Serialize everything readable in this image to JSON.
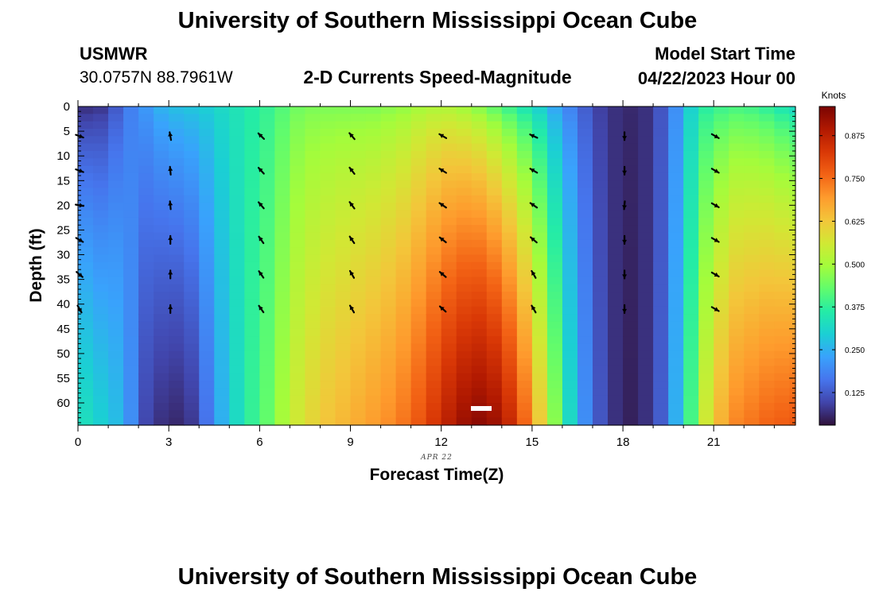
{
  "header": {
    "title": "University of Southern Mississippi Ocean Cube",
    "station_name": "USMWR",
    "station_coords": "30.0757N  88.7961W",
    "subtitle": "2-D Currents Speed-Magnitude",
    "model_label": "Model Start Time",
    "model_time": "04/22/2023 Hour 00"
  },
  "footer": {
    "title": "University of Southern Mississippi Ocean Cube"
  },
  "chart_data": {
    "type": "heatmap",
    "title": "2-D Currents Speed-Magnitude",
    "xlabel": "Forecast Time(Z)",
    "ylabel": "Depth (ft)",
    "date_label": "APR 22",
    "xlim": [
      0,
      23.7
    ],
    "ylim": [
      0,
      64.5
    ],
    "y_inverted": true,
    "x_ticks": [
      0,
      3,
      6,
      9,
      12,
      15,
      18,
      21
    ],
    "y_ticks": [
      0,
      5,
      10,
      15,
      20,
      25,
      30,
      35,
      40,
      45,
      50,
      55,
      60
    ],
    "colorbar": {
      "label": "Knots",
      "min": 0.03,
      "max": 0.96,
      "ticks": [
        "0.125",
        "0.250",
        "0.375",
        "0.500",
        "0.625",
        "0.750",
        "0.875"
      ],
      "tick_values": [
        0.125,
        0.25,
        0.375,
        0.5,
        0.625,
        0.75,
        0.875
      ],
      "colors": [
        "#30123b",
        "#4145ab",
        "#4675ed",
        "#39a2fc",
        "#1bcfd4",
        "#24eca6",
        "#61fc6c",
        "#a4fc3b",
        "#d1e834",
        "#f3c63a",
        "#fe9b2d",
        "#f36315",
        "#d93806",
        "#b11901",
        "#7a0403"
      ]
    },
    "time_hours": [
      0,
      0.5,
      1,
      1.5,
      2,
      2.5,
      3,
      3.5,
      4,
      4.5,
      5,
      5.5,
      6,
      6.5,
      7,
      7.5,
      8,
      8.5,
      9,
      9.5,
      10,
      10.5,
      11,
      11.5,
      12,
      12.5,
      13,
      13.5,
      14,
      14.5,
      15,
      15.5,
      16,
      16.5,
      17,
      17.5,
      18,
      18.5,
      19,
      19.5,
      20,
      20.5,
      21,
      21.5,
      22,
      22.5,
      23,
      23.5
    ],
    "surface_speed_knots": [
      0.06,
      0.07,
      0.12,
      0.18,
      0.22,
      0.26,
      0.28,
      0.29,
      0.3,
      0.32,
      0.34,
      0.36,
      0.38,
      0.41,
      0.44,
      0.45,
      0.45,
      0.45,
      0.45,
      0.45,
      0.46,
      0.47,
      0.49,
      0.5,
      0.5,
      0.48,
      0.45,
      0.41,
      0.37,
      0.33,
      0.29,
      0.23,
      0.18,
      0.13,
      0.09,
      0.07,
      0.06,
      0.07,
      0.12,
      0.2,
      0.3,
      0.36,
      0.38,
      0.39,
      0.38,
      0.36,
      0.33,
      0.3
    ],
    "bottom_speed_knots": [
      0.33,
      0.3,
      0.27,
      0.2,
      0.1,
      0.07,
      0.06,
      0.08,
      0.16,
      0.25,
      0.32,
      0.38,
      0.43,
      0.5,
      0.56,
      0.6,
      0.63,
      0.65,
      0.67,
      0.69,
      0.71,
      0.74,
      0.78,
      0.83,
      0.88,
      0.92,
      0.94,
      0.92,
      0.86,
      0.76,
      0.62,
      0.47,
      0.32,
      0.2,
      0.12,
      0.07,
      0.05,
      0.07,
      0.13,
      0.25,
      0.4,
      0.56,
      0.66,
      0.72,
      0.74,
      0.76,
      0.77,
      0.78
    ],
    "vector_times": [
      0,
      3,
      6,
      9,
      12,
      15,
      18,
      21
    ],
    "vector_depths": [
      6,
      13,
      20,
      27,
      34,
      41
    ],
    "vector_directions_deg": [
      [
        110,
        110,
        100,
        120,
        130,
        150
      ],
      [
        350,
        355,
        355,
        360,
        360,
        360
      ],
      [
        315,
        318,
        320,
        325,
        325,
        325
      ],
      [
        320,
        322,
        324,
        326,
        330,
        330
      ],
      [
        300,
        302,
        305,
        308,
        310,
        312
      ],
      [
        295,
        300,
        305,
        310,
        330,
        330
      ],
      [
        180,
        180,
        185,
        180,
        180,
        180
      ],
      [
        120,
        120,
        120,
        120,
        120,
        120
      ]
    ]
  }
}
